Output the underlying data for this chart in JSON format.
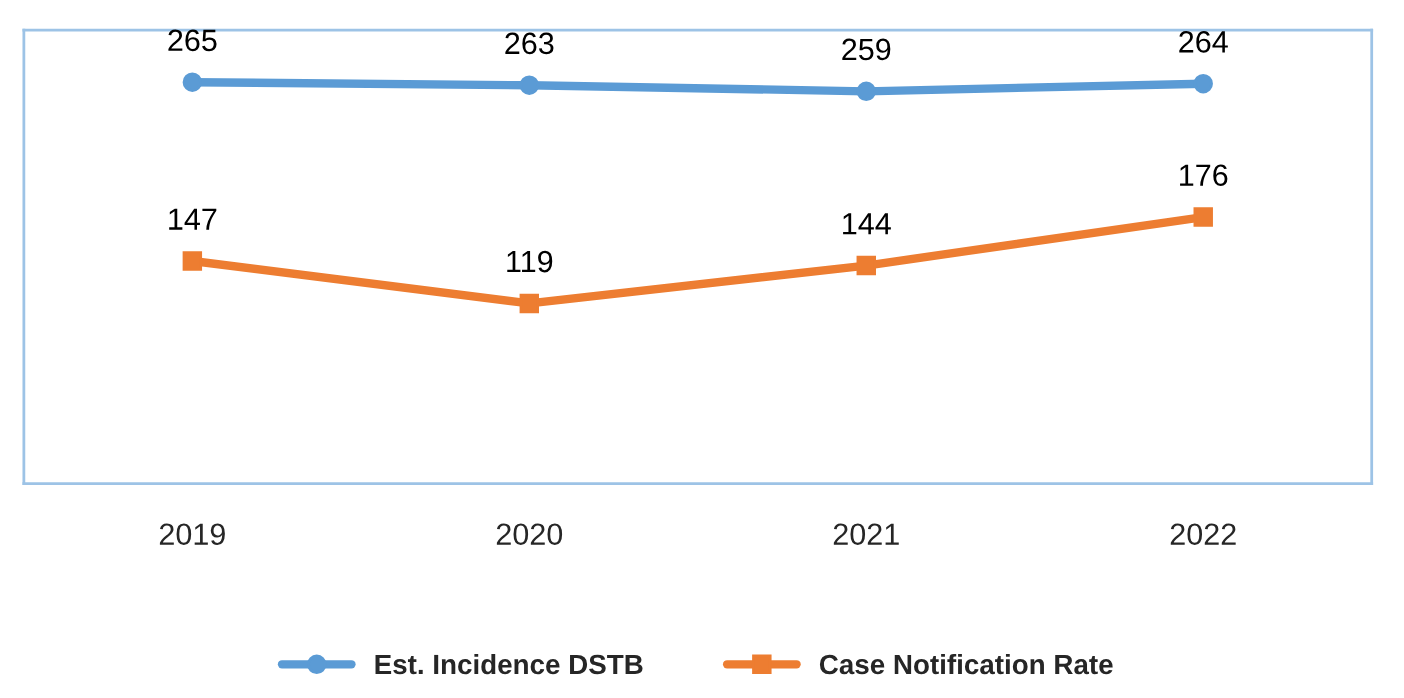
{
  "chart_data": {
    "type": "line",
    "categories": [
      "2019",
      "2020",
      "2021",
      "2022"
    ],
    "series": [
      {
        "name": "Est. Incidence DSTB",
        "color": "#5b9bd5",
        "values": [
          265,
          263,
          259,
          264
        ],
        "marker": "circle"
      },
      {
        "name": "Case Notification Rate",
        "color": "#ed7d31",
        "values": [
          147,
          119,
          144,
          176
        ],
        "marker": "square"
      }
    ],
    "data_labels": true,
    "legend": "bottom",
    "grid": false,
    "line_style": "solid",
    "tick_labels": "x"
  }
}
